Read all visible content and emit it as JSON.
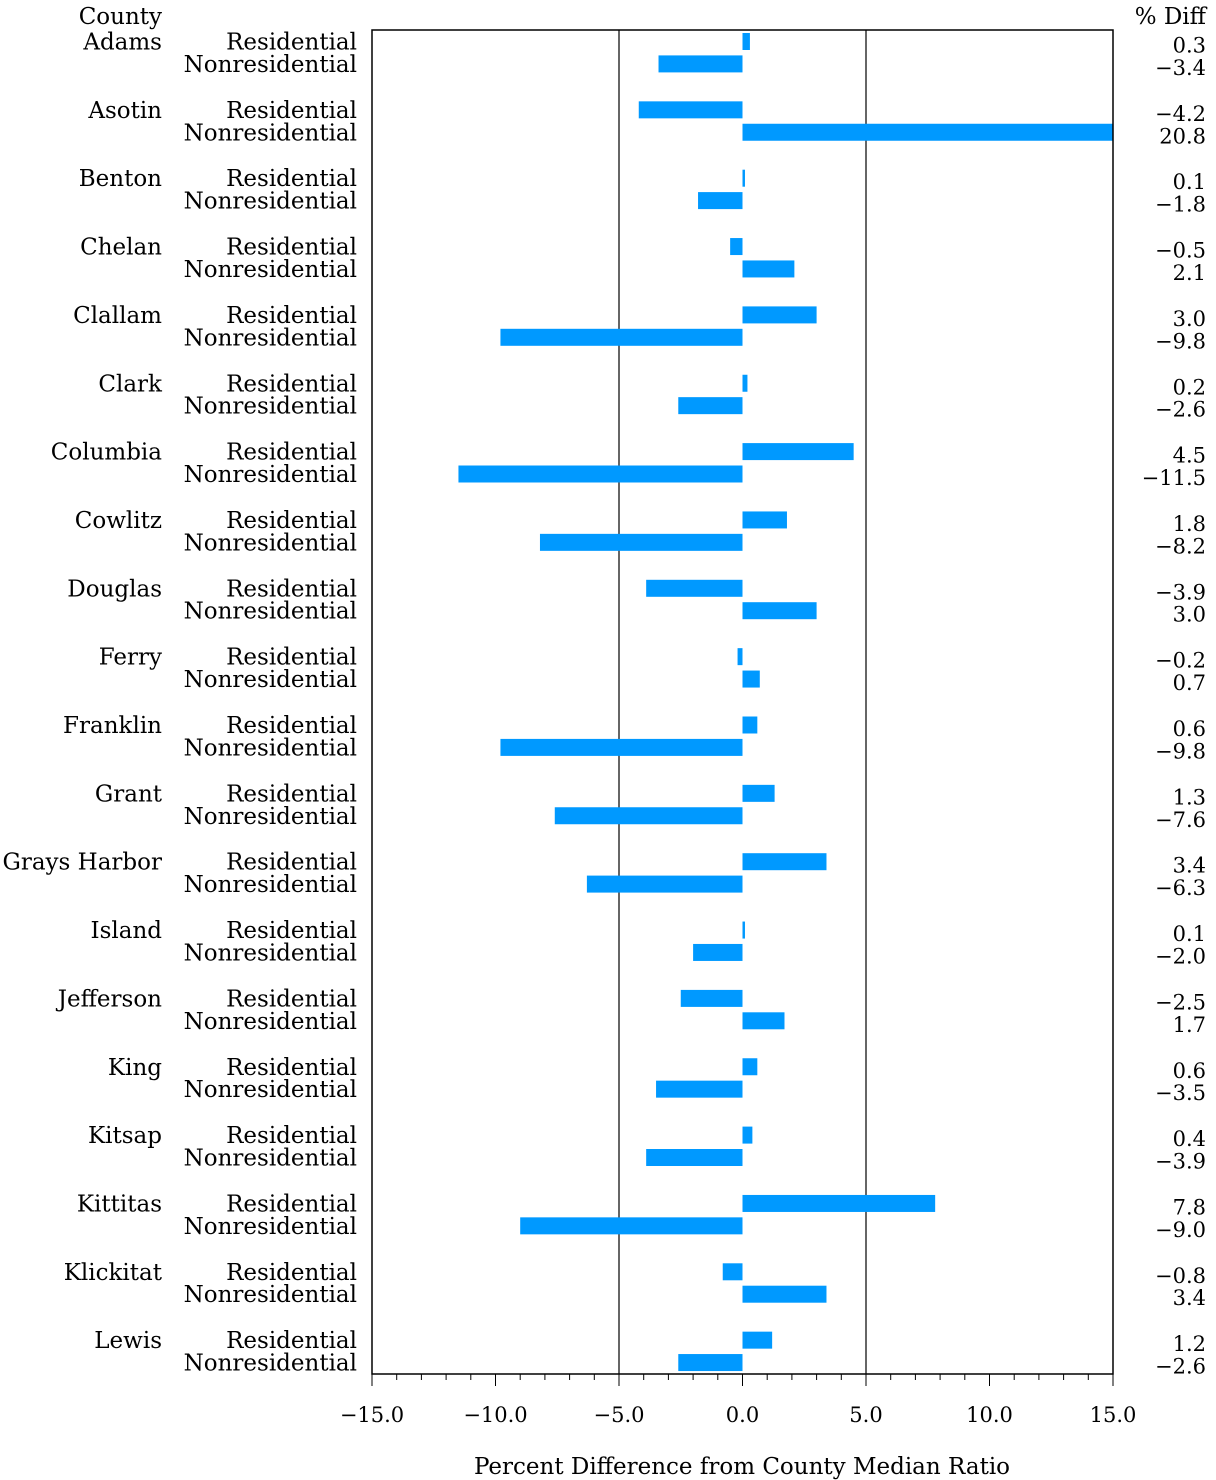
{
  "chart_data": {
    "type": "bar",
    "orientation": "horizontal",
    "header_left": "County",
    "header_right": "% Diff",
    "xlabel": "Percent Difference from County Median Ratio",
    "xlim": [
      -15,
      15
    ],
    "xticks": [
      -15,
      -10,
      -5,
      0,
      5,
      10,
      15
    ],
    "xtick_labels": [
      "−15.0",
      "−10.0",
      "−5.0",
      "0.0",
      "5.0",
      "10.0",
      "15.0"
    ],
    "reference_lines": [
      -5,
      5
    ],
    "bar_color": "#0099ff",
    "class_labels": [
      "Residential",
      "Nonresidential"
    ],
    "counties": [
      {
        "name": "Adams",
        "residential": 0.3,
        "nonresidential": -3.4,
        "residential_label": "0.3",
        "nonresidential_label": "−3.4"
      },
      {
        "name": "Asotin",
        "residential": -4.2,
        "nonresidential": 20.8,
        "residential_label": "−4.2",
        "nonresidential_label": "20.8"
      },
      {
        "name": "Benton",
        "residential": 0.1,
        "nonresidential": -1.8,
        "residential_label": "0.1",
        "nonresidential_label": "−1.8"
      },
      {
        "name": "Chelan",
        "residential": -0.5,
        "nonresidential": 2.1,
        "residential_label": "−0.5",
        "nonresidential_label": "2.1"
      },
      {
        "name": "Clallam",
        "residential": 3.0,
        "nonresidential": -9.8,
        "residential_label": "3.0",
        "nonresidential_label": "−9.8"
      },
      {
        "name": "Clark",
        "residential": 0.2,
        "nonresidential": -2.6,
        "residential_label": "0.2",
        "nonresidential_label": "−2.6"
      },
      {
        "name": "Columbia",
        "residential": 4.5,
        "nonresidential": -11.5,
        "residential_label": "4.5",
        "nonresidential_label": "−11.5"
      },
      {
        "name": "Cowlitz",
        "residential": 1.8,
        "nonresidential": -8.2,
        "residential_label": "1.8",
        "nonresidential_label": "−8.2"
      },
      {
        "name": "Douglas",
        "residential": -3.9,
        "nonresidential": 3.0,
        "residential_label": "−3.9",
        "nonresidential_label": "3.0"
      },
      {
        "name": "Ferry",
        "residential": -0.2,
        "nonresidential": 0.7,
        "residential_label": "−0.2",
        "nonresidential_label": "0.7"
      },
      {
        "name": "Franklin",
        "residential": 0.6,
        "nonresidential": -9.8,
        "residential_label": "0.6",
        "nonresidential_label": "−9.8"
      },
      {
        "name": "Grant",
        "residential": 1.3,
        "nonresidential": -7.6,
        "residential_label": "1.3",
        "nonresidential_label": "−7.6"
      },
      {
        "name": "Grays Harbor",
        "residential": 3.4,
        "nonresidential": -6.3,
        "residential_label": "3.4",
        "nonresidential_label": "−6.3"
      },
      {
        "name": "Island",
        "residential": 0.1,
        "nonresidential": -2.0,
        "residential_label": "0.1",
        "nonresidential_label": "−2.0"
      },
      {
        "name": "Jefferson",
        "residential": -2.5,
        "nonresidential": 1.7,
        "residential_label": "−2.5",
        "nonresidential_label": "1.7"
      },
      {
        "name": "King",
        "residential": 0.6,
        "nonresidential": -3.5,
        "residential_label": "0.6",
        "nonresidential_label": "−3.5"
      },
      {
        "name": "Kitsap",
        "residential": 0.4,
        "nonresidential": -3.9,
        "residential_label": "0.4",
        "nonresidential_label": "−3.9"
      },
      {
        "name": "Kittitas",
        "residential": 7.8,
        "nonresidential": -9.0,
        "residential_label": "7.8",
        "nonresidential_label": "−9.0"
      },
      {
        "name": "Klickitat",
        "residential": -0.8,
        "nonresidential": 3.4,
        "residential_label": "−0.8",
        "nonresidential_label": "3.4"
      },
      {
        "name": "Lewis",
        "residential": 1.2,
        "nonresidential": -2.6,
        "residential_label": "1.2",
        "nonresidential_label": "−2.6"
      }
    ]
  }
}
